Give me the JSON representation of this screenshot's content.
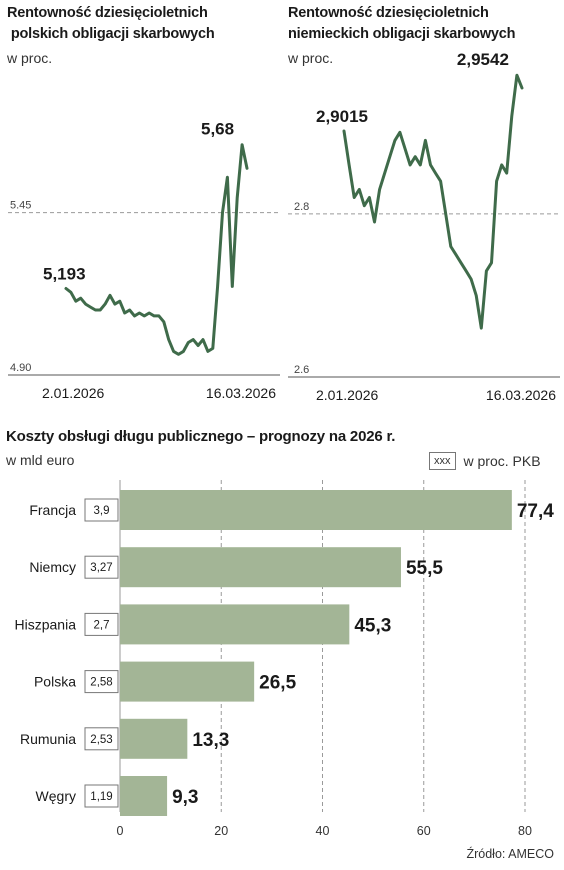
{
  "charts": {
    "pl": {
      "title_line1": "Rentowność dziesięcioletnich",
      "title_line2": " polskich obligacji skarbowych",
      "unit": "w proc.",
      "x_start_label": "2.01.2026",
      "x_end_label": "16.03.2026",
      "first_label": "5,193",
      "last_label": "5,68"
    },
    "de": {
      "title_line1": "Rentowność dziesięcioletnich",
      "title_line2": "niemieckich obligacji skarbowych",
      "unit": "w proc.",
      "x_start_label": "2.01.2026",
      "x_end_label": "16.03.2026",
      "first_label": "2,9015",
      "last_label": "2,9542"
    },
    "costs": {
      "title": "Koszty obsługi długu publicznego – prognozy na 2026 r.",
      "unit": "w mld euro",
      "legend_box": "xxx",
      "legend_text": "w proc. PKB",
      "source": "Źródło: AMECO"
    }
  },
  "chart_data": [
    {
      "type": "line",
      "title": "Rentowność dziesięcioletnich polskich obligacji skarbowych",
      "ylabel": "w proc.",
      "ylim": [
        4.9,
        5.75
      ],
      "yticks": [
        "5.45",
        "4.90"
      ],
      "ytick_values": [
        5.45,
        4.9
      ],
      "x_labels": [
        "2.01.2026",
        "16.03.2026"
      ],
      "series": [
        {
          "values": [
            5.193,
            5.18,
            5.15,
            5.16,
            5.14,
            5.13,
            5.12,
            5.12,
            5.14,
            5.17,
            5.14,
            5.15,
            5.11,
            5.12,
            5.1,
            5.11,
            5.1,
            5.11,
            5.1,
            5.1,
            5.08,
            5.02,
            4.98,
            4.97,
            4.98,
            5.01,
            5.02,
            5.0,
            5.02,
            4.98,
            4.99,
            5.2,
            5.45,
            5.57,
            5.2,
            5.5,
            5.68,
            5.6
          ]
        }
      ],
      "annotations": [
        "5,193",
        "5,68"
      ],
      "color": "#3f6b4a"
    },
    {
      "type": "line",
      "title": "Rentowność dziesięcioletnich niemieckich obligacji skarbowych",
      "ylabel": "w proc.",
      "ylim": [
        2.6,
        2.98
      ],
      "yticks": [
        "2.8",
        "2.6"
      ],
      "ytick_values": [
        2.8,
        2.6
      ],
      "x_labels": [
        "2.01.2026",
        "16.03.2026"
      ],
      "series": [
        {
          "values": [
            2.9015,
            2.86,
            2.82,
            2.83,
            2.81,
            2.82,
            2.79,
            2.83,
            2.85,
            2.87,
            2.89,
            2.9,
            2.88,
            2.86,
            2.87,
            2.86,
            2.89,
            2.86,
            2.85,
            2.84,
            2.8,
            2.76,
            2.75,
            2.74,
            2.73,
            2.72,
            2.7,
            2.66,
            2.73,
            2.74,
            2.84,
            2.86,
            2.85,
            2.92,
            2.97,
            2.9542
          ]
        }
      ],
      "annotations": [
        "2,9015",
        "2,9542"
      ],
      "color": "#3f6b4a"
    },
    {
      "type": "bar",
      "title": "Koszty obsługi długu publicznego – prognozy na 2026 r.",
      "xlabel": "w mld euro",
      "orientation": "horizontal",
      "categories": [
        "Francja",
        "Niemcy",
        "Hiszpania",
        "Polska",
        "Rumunia",
        "Węgry"
      ],
      "values": [
        77.4,
        55.5,
        45.3,
        26.5,
        13.3,
        9.3
      ],
      "value_labels": [
        "77,4",
        "55,5",
        "45,3",
        "26,5",
        "13,3",
        "9,3"
      ],
      "pct_gdp": [
        "3,9",
        "3,27",
        "2,7",
        "2,58",
        "2,53",
        "1,19"
      ],
      "xlim": [
        0,
        80
      ],
      "xticks": [
        0,
        20,
        40,
        60,
        80
      ],
      "grid": true,
      "color": "#a3b596"
    }
  ]
}
